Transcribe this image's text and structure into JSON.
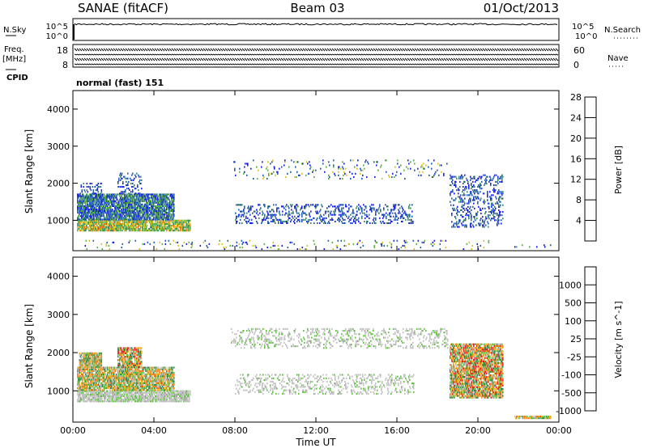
{
  "header": {
    "station": "SANAE (fitACF)",
    "beam": "Beam 03",
    "date": "01/Oct/2013"
  },
  "strip_labels": {
    "nsky": "N.Sky",
    "nsearch": "N.Search",
    "freq": "Freq.",
    "freq_unit": "[MHz]",
    "nave": "Nave",
    "cpid": "CPID",
    "cpid_value": "normal (fast) 151"
  },
  "noise_axis": {
    "left_top": "10^5",
    "left_bottom": "10^0",
    "right_top": "10^5",
    "right_bottom": "10^0"
  },
  "freq_axis": {
    "left_top": "18",
    "left_bottom": "8",
    "right_top": "60",
    "right_bottom": "0"
  },
  "chart_data": [
    {
      "type": "heatmap",
      "title": "Power",
      "ylabel": "Slant Range [km]",
      "ylim": [
        180,
        4500
      ],
      "y_ticks": [
        "1000",
        "2000",
        "3000",
        "4000"
      ],
      "x_ticks": [
        "00:00",
        "04:00",
        "08:00",
        "12:00",
        "16:00",
        "20:00",
        "00:00"
      ],
      "colorbar": {
        "label": "Power [dB]",
        "ticks": [
          "4",
          "8",
          "12",
          "16",
          "20",
          "24",
          "28"
        ],
        "colors": [
          "#1a1ee0",
          "#1e5ab0",
          "#3a8a60",
          "#58b040",
          "#d8c020",
          "#f08020",
          "#e02020"
        ]
      },
      "regions": [
        {
          "t": [
            0.2,
            5.8
          ],
          "r": [
            700,
            1000
          ],
          "level": "high"
        },
        {
          "t": [
            0.2,
            5.0
          ],
          "r": [
            1000,
            1700
          ],
          "level": "mid"
        },
        {
          "t": [
            0.3,
            1.4
          ],
          "r": [
            1700,
            2000
          ],
          "level": "low"
        },
        {
          "t": [
            2.2,
            3.4
          ],
          "r": [
            1700,
            2250
          ],
          "level": "low"
        },
        {
          "t": [
            8.0,
            16.8
          ],
          "r": [
            900,
            1400
          ],
          "level": "low"
        },
        {
          "t": [
            7.8,
            18.5
          ],
          "r": [
            2100,
            2600
          ],
          "level": "sparse"
        },
        {
          "t": [
            18.6,
            21.2
          ],
          "r": [
            800,
            2200
          ],
          "level": "low"
        },
        {
          "t": [
            21.8,
            23.6
          ],
          "r": [
            260,
            320
          ],
          "level": "sparse"
        },
        {
          "t": [
            0.5,
            20.5
          ],
          "r": [
            200,
            450
          ],
          "level": "sparse"
        }
      ]
    },
    {
      "type": "heatmap",
      "title": "Velocity",
      "ylabel": "Slant Range [km]",
      "xlabel": "Time UT",
      "ylim": [
        180,
        4500
      ],
      "y_ticks": [
        "1000",
        "2000",
        "3000",
        "4000"
      ],
      "x_ticks": [
        "00:00",
        "04:00",
        "08:00",
        "12:00",
        "16:00",
        "20:00",
        "00:00"
      ],
      "colorbar": {
        "label": "Velocity [m s^-1]",
        "ticks": [
          "1000",
          "500",
          "100",
          "25",
          "-25",
          "-100",
          "-500",
          "-1000"
        ],
        "colors": [
          "#1a2ad0",
          "#2a5ab0",
          "#3a8a50",
          "#60c040",
          "#c0c0c0",
          "#f0b020",
          "#f08020",
          "#e02020"
        ]
      },
      "regions": [
        {
          "t": [
            0.2,
            5.8
          ],
          "r": [
            700,
            1000
          ],
          "level": "ground"
        },
        {
          "t": [
            0.2,
            5.0
          ],
          "r": [
            1000,
            1600
          ],
          "level": "neg"
        },
        {
          "t": [
            0.3,
            1.4
          ],
          "r": [
            1600,
            2000
          ],
          "level": "neg"
        },
        {
          "t": [
            2.2,
            3.4
          ],
          "r": [
            1600,
            2100
          ],
          "level": "mixed"
        },
        {
          "t": [
            8.0,
            16.8
          ],
          "r": [
            900,
            1400
          ],
          "level": "ground"
        },
        {
          "t": [
            7.8,
            18.5
          ],
          "r": [
            2100,
            2600
          ],
          "level": "ground"
        },
        {
          "t": [
            18.6,
            21.2
          ],
          "r": [
            800,
            2200
          ],
          "level": "mixed"
        },
        {
          "t": [
            21.8,
            23.6
          ],
          "r": [
            260,
            320
          ],
          "level": "neg"
        }
      ]
    }
  ]
}
